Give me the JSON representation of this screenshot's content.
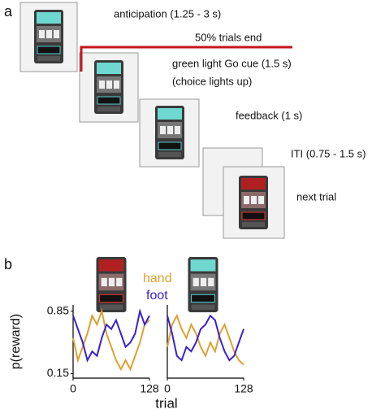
{
  "panel_a": {
    "label": "a",
    "note": "50% trials end",
    "steps": [
      "anticipation (1.25 - 3 s)",
      "green light Go cue (1.5 s)",
      "(choice lights up)",
      "feedback (1 s)",
      "ITI (0.75 - 1.5 s)",
      "next trial"
    ]
  },
  "panel_b": {
    "label": "b"
  },
  "chart_data": [
    {
      "type": "line",
      "xlabel": "trial",
      "ylabel": "p(reward)",
      "x": [
        0,
        8,
        16,
        24,
        32,
        40,
        48,
        56,
        64,
        72,
        80,
        88,
        96,
        104,
        112,
        120,
        128
      ],
      "xlim": [
        0,
        128
      ],
      "xticks": [
        0,
        128
      ],
      "ylim": [
        0.1,
        0.92
      ],
      "yticks": [
        0.15,
        0.85
      ],
      "series": [
        {
          "name": "hand",
          "color": "#e0a030",
          "values": [
            0.55,
            0.3,
            0.45,
            0.6,
            0.8,
            0.7,
            0.85,
            0.6,
            0.45,
            0.3,
            0.2,
            0.3,
            0.2,
            0.35,
            0.5,
            0.7,
            0.75
          ]
        },
        {
          "name": "foot",
          "color": "#3a22d0",
          "values": [
            0.8,
            0.65,
            0.5,
            0.3,
            0.4,
            0.35,
            0.55,
            0.7,
            0.65,
            0.75,
            0.6,
            0.45,
            0.5,
            0.6,
            0.85,
            0.7,
            0.8
          ]
        }
      ]
    },
    {
      "type": "line",
      "x": [
        0,
        8,
        16,
        24,
        32,
        40,
        48,
        56,
        64,
        72,
        80,
        88,
        96,
        104,
        112,
        120,
        128
      ],
      "xlim": [
        0,
        128
      ],
      "xticks": [
        0,
        128
      ],
      "ylim": [
        0.1,
        0.92
      ],
      "series": [
        {
          "color": "#e0a030",
          "values": [
            0.45,
            0.7,
            0.8,
            0.65,
            0.55,
            0.7,
            0.6,
            0.45,
            0.35,
            0.5,
            0.4,
            0.6,
            0.7,
            0.55,
            0.4,
            0.3,
            0.25
          ]
        },
        {
          "color": "#3a22d0",
          "values": [
            0.8,
            0.6,
            0.35,
            0.3,
            0.45,
            0.4,
            0.5,
            0.65,
            0.7,
            0.8,
            0.75,
            0.55,
            0.4,
            0.3,
            0.35,
            0.5,
            0.65
          ]
        }
      ]
    }
  ]
}
